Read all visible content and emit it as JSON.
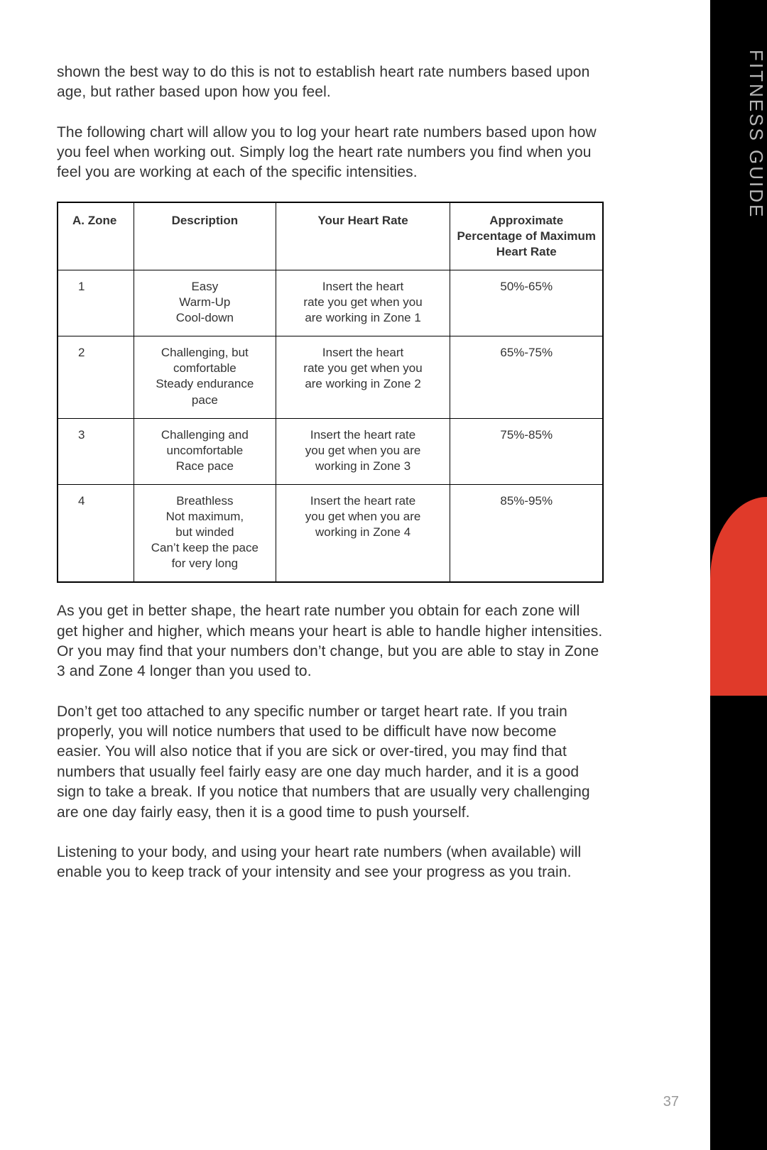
{
  "sideTab": {
    "label": "FITNESS GUIDE",
    "bgColor": "#000000",
    "accentColor": "#e03a2a",
    "textColor": "#b6b6b6"
  },
  "pageNumber": "37",
  "paragraphs": {
    "p1": "shown the best way to do this is not to establish heart rate numbers based upon age, but rather based upon how you feel.",
    "p2": "The following chart will allow you to log your heart rate numbers based upon how you feel when working out. Simply log the heart rate numbers you find when you feel you are working at each of the specific intensities.",
    "p3": "As you get in better shape, the heart rate number you obtain for each zone will get higher and higher, which means your heart is able to handle higher intensities. Or you may find that your numbers don’t change, but you are able to stay in Zone 3 and Zone 4 longer than you used to.",
    "p4": "Don’t get too attached to any specific number or target heart rate. If you train properly, you will notice numbers that used to be difficult have now become easier. You will also notice that if you are sick or over-tired, you may find that numbers that usually feel fairly easy are one day much harder, and it is a good sign to take a break. If you notice that numbers that are usually very challenging are one day fairly easy, then it is a good time to push your­self.",
    "p5": "Listening to your body, and using your heart rate numbers (when available) will enable you to keep track of your intensity and see your progress as you train."
  },
  "table": {
    "type": "table",
    "borderColor": "#000000",
    "headerFontWeight": "bold",
    "fontSize": 17,
    "columns": [
      {
        "key": "zone",
        "label": "A. Zone",
        "width": "14%",
        "align": "left"
      },
      {
        "key": "desc",
        "label": "Description",
        "width": "26%",
        "align": "center"
      },
      {
        "key": "rate",
        "label": "Your Heart Rate",
        "width": "32%",
        "align": "center"
      },
      {
        "key": "pct",
        "label": "Approximate Percentage of Maximum Heart Rate",
        "width": "28%",
        "align": "center"
      }
    ],
    "rows": [
      {
        "zone": "1",
        "desc": "Easy\nWarm-Up\nCool-down",
        "rate": "Insert the heart\nrate you get when you\nare working in Zone 1",
        "pct": "50%-65%"
      },
      {
        "zone": "2",
        "desc": "Challenging, but\ncomfortable\nSteady endurance\npace",
        "rate": "Insert the heart\nrate you get when you\nare working in Zone 2",
        "pct": "65%-75%"
      },
      {
        "zone": "3",
        "desc": "Challenging and\nuncomfortable\nRace pace",
        "rate": "Insert the heart rate\nyou get when you are\nworking in Zone 3",
        "pct": "75%-85%"
      },
      {
        "zone": "4",
        "desc": "Breathless\nNot maximum,\nbut winded\nCan’t keep the pace\nfor very long",
        "rate": "Insert the heart rate\nyou get when you are\nworking in Zone 4",
        "pct": "85%-95%"
      }
    ]
  }
}
